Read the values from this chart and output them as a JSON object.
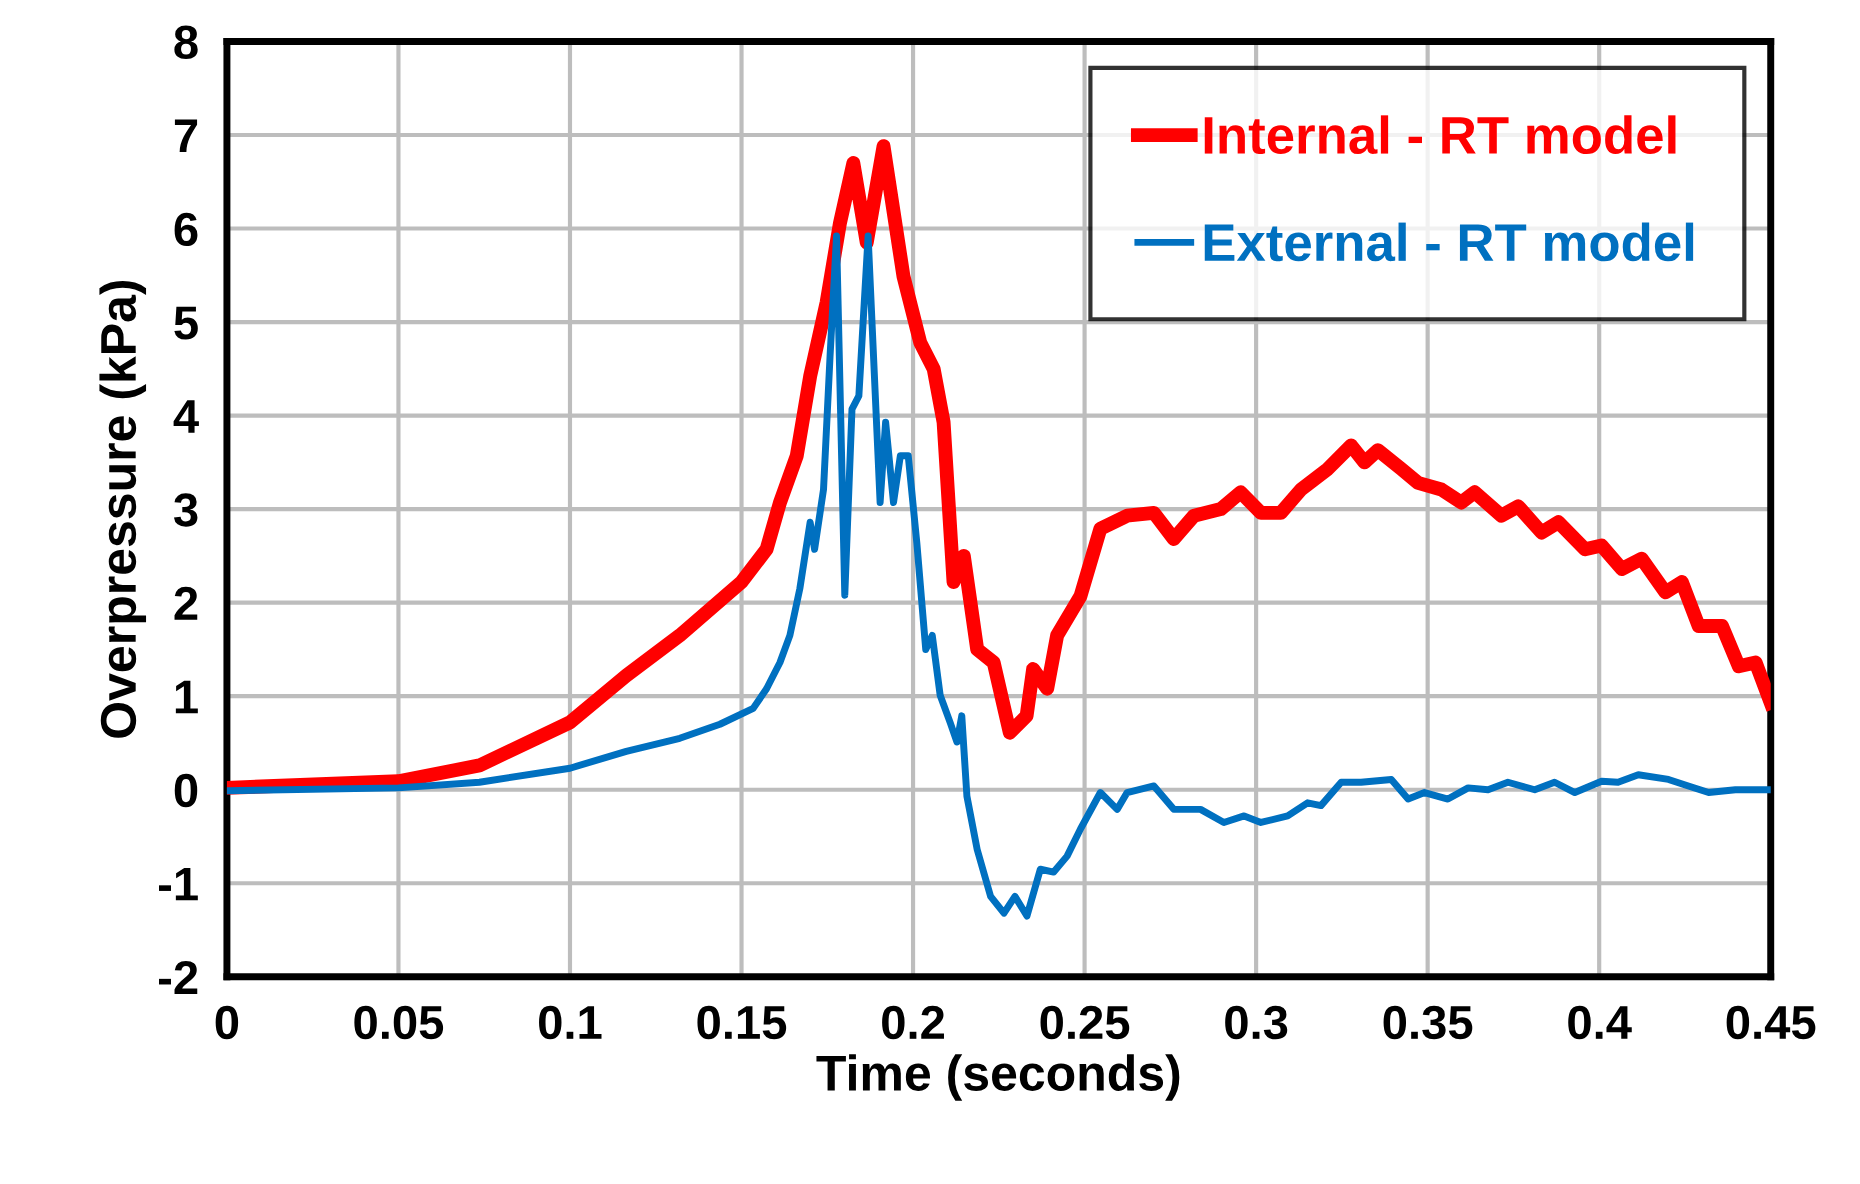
{
  "chart_data": {
    "type": "line",
    "xlabel": "Time (seconds)",
    "ylabel": "Overpressure (kPa)",
    "xlim": [
      0,
      0.45
    ],
    "xticks": [
      0,
      0.05,
      0.1,
      0.15,
      0.2,
      0.25,
      0.3,
      0.35,
      0.4,
      0.45
    ],
    "ylim": [
      -2,
      8
    ],
    "yticks": [
      -2,
      -1,
      0,
      1,
      2,
      3,
      4,
      5,
      6,
      7,
      8
    ],
    "grid": true,
    "legend": "top right",
    "marker": "none",
    "line_style": "solid",
    "series": [
      {
        "name": "Internal - RT model",
        "color": "#ff0000",
        "x": [
          0,
          0.05,
          0.0736,
          0.1,
          0.1164,
          0.132,
          0.15,
          0.1573,
          0.1612,
          0.1661,
          0.17,
          0.1748,
          0.1787,
          0.1826,
          0.1865,
          0.1914,
          0.1972,
          0.2021,
          0.206,
          0.2089,
          0.2118,
          0.2148,
          0.2187,
          0.2235,
          0.2282,
          0.2331,
          0.235,
          0.2391,
          0.242,
          0.2488,
          0.2546,
          0.2624,
          0.2702,
          0.276,
          0.2819,
          0.2897,
          0.2955,
          0.3014,
          0.3072,
          0.3131,
          0.3209,
          0.3277,
          0.3316,
          0.3355,
          0.3423,
          0.3472,
          0.354,
          0.3598,
          0.3637,
          0.3715,
          0.3764,
          0.3832,
          0.3881,
          0.3959,
          0.4007,
          0.4066,
          0.4124,
          0.4193,
          0.4241,
          0.429,
          0.4358,
          0.4407,
          0.4456,
          0.45
        ],
        "values": [
          0.02,
          0.09,
          0.26,
          0.72,
          1.22,
          1.65,
          2.22,
          2.57,
          3.07,
          3.57,
          4.42,
          5.21,
          6.06,
          6.7,
          5.85,
          6.88,
          5.49,
          4.78,
          4.5,
          3.93,
          2.22,
          2.5,
          1.5,
          1.36,
          0.61,
          0.79,
          1.29,
          1.08,
          1.65,
          2.07,
          2.79,
          2.93,
          2.96,
          2.68,
          2.93,
          3.0,
          3.18,
          2.96,
          2.96,
          3.21,
          3.43,
          3.68,
          3.5,
          3.63,
          3.43,
          3.28,
          3.21,
          3.07,
          3.18,
          2.93,
          3.03,
          2.75,
          2.86,
          2.57,
          2.61,
          2.36,
          2.47,
          2.11,
          2.22,
          1.75,
          1.75,
          1.32,
          1.36,
          0.93
        ]
      },
      {
        "name": "External - RT model",
        "color": "#0070c0",
        "x": [
          0,
          0.05,
          0.0736,
          0.1,
          0.1164,
          0.132,
          0.1437,
          0.1534,
          0.1573,
          0.1612,
          0.1641,
          0.167,
          0.17,
          0.1713,
          0.1739,
          0.1758,
          0.1777,
          0.1801,
          0.1822,
          0.1842,
          0.1869,
          0.1904,
          0.192,
          0.1943,
          0.1963,
          0.1986,
          0.2011,
          0.2037,
          0.2056,
          0.2079,
          0.2108,
          0.2128,
          0.2142,
          0.2157,
          0.2187,
          0.2226,
          0.2265,
          0.2297,
          0.2332,
          0.2371,
          0.241,
          0.2449,
          0.2488,
          0.2546,
          0.2595,
          0.2624,
          0.2702,
          0.276,
          0.2838,
          0.2906,
          0.2965,
          0.3014,
          0.3092,
          0.315,
          0.3189,
          0.3248,
          0.3306,
          0.3394,
          0.3443,
          0.3491,
          0.3559,
          0.3618,
          0.3676,
          0.3734,
          0.3812,
          0.387,
          0.3929,
          0.4007,
          0.4055,
          0.4114,
          0.4202,
          0.426,
          0.4319,
          0.4397,
          0.45
        ],
        "values": [
          -0.01,
          0.02,
          0.08,
          0.23,
          0.41,
          0.55,
          0.7,
          0.87,
          1.08,
          1.36,
          1.65,
          2.15,
          2.86,
          2.57,
          3.21,
          4.63,
          5.92,
          2.08,
          4.07,
          4.21,
          5.92,
          3.07,
          3.93,
          3.07,
          3.57,
          3.57,
          2.64,
          1.5,
          1.65,
          1.01,
          0.72,
          0.51,
          0.79,
          -0.07,
          -0.64,
          -1.14,
          -1.32,
          -1.14,
          -1.35,
          -0.85,
          -0.88,
          -0.71,
          -0.42,
          -0.03,
          -0.21,
          -0.03,
          0.04,
          -0.21,
          -0.21,
          -0.35,
          -0.28,
          -0.35,
          -0.28,
          -0.14,
          -0.17,
          0.08,
          0.08,
          0.11,
          -0.1,
          -0.03,
          -0.1,
          0.02,
          0.0,
          0.08,
          0.0,
          0.08,
          -0.03,
          0.09,
          0.08,
          0.16,
          0.11,
          0.04,
          -0.03,
          0.0,
          0.0
        ]
      }
    ]
  }
}
